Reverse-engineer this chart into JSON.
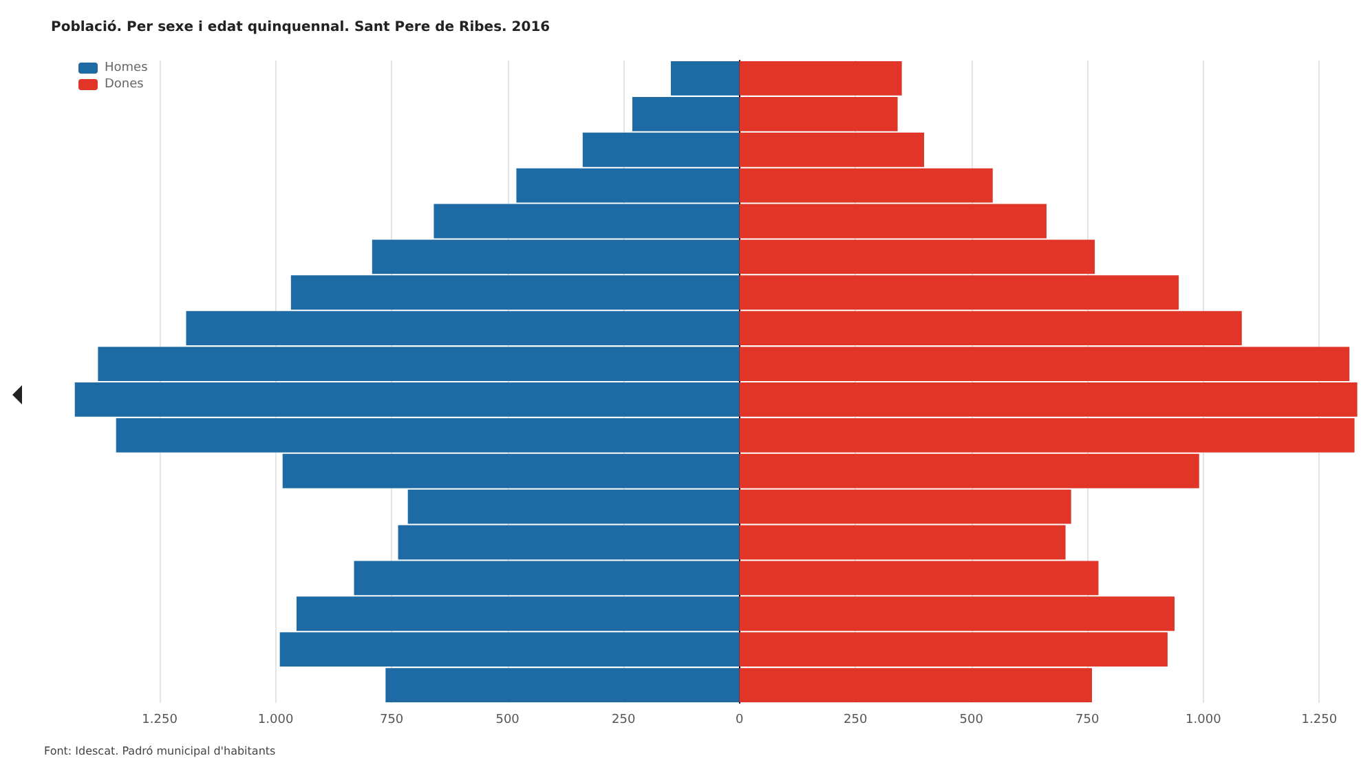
{
  "chart_data": {
    "type": "bar",
    "orientation": "horizontal",
    "stacked": true,
    "title": "Població. Per sexe i edat quinquennal. Sant Pere de Ribes. 2016",
    "annotations": [
      "Font: Idescat. Padró municipal d'habitants"
    ],
    "categories": [
      null,
      null,
      null,
      null,
      null,
      null,
      null,
      null,
      null,
      null,
      null,
      null,
      null,
      null,
      null,
      null,
      null,
      null
    ],
    "series": [
      {
        "name": "Homes",
        "color": "#1d6aa5",
        "values": [
          -148,
          -231,
          -338,
          -481,
          -659,
          -792,
          -967,
          -1193,
          -1383,
          -1433,
          -1344,
          -985,
          -715,
          -736,
          -831,
          -955,
          -991,
          -763
        ]
      },
      {
        "name": "Dones",
        "color": "#e03527",
        "values": [
          350,
          341,
          398,
          546,
          662,
          766,
          947,
          1083,
          1315,
          1332,
          1326,
          991,
          715,
          703,
          774,
          938,
          923,
          760
        ]
      }
    ],
    "xlim": [
      -1440,
      1340
    ],
    "xticks": [
      {
        "value": -1250,
        "label": "1.250"
      },
      {
        "value": -1000,
        "label": "1.000"
      },
      {
        "value": -750,
        "label": "750"
      },
      {
        "value": -500,
        "label": "500"
      },
      {
        "value": -250,
        "label": "250"
      },
      0,
      250,
      500,
      750,
      {
        "value": 1000,
        "label": "1.000"
      },
      {
        "value": 1250,
        "label": "1.250"
      }
    ],
    "tick_labels": "x",
    "grid": "x",
    "legend": "top left"
  }
}
